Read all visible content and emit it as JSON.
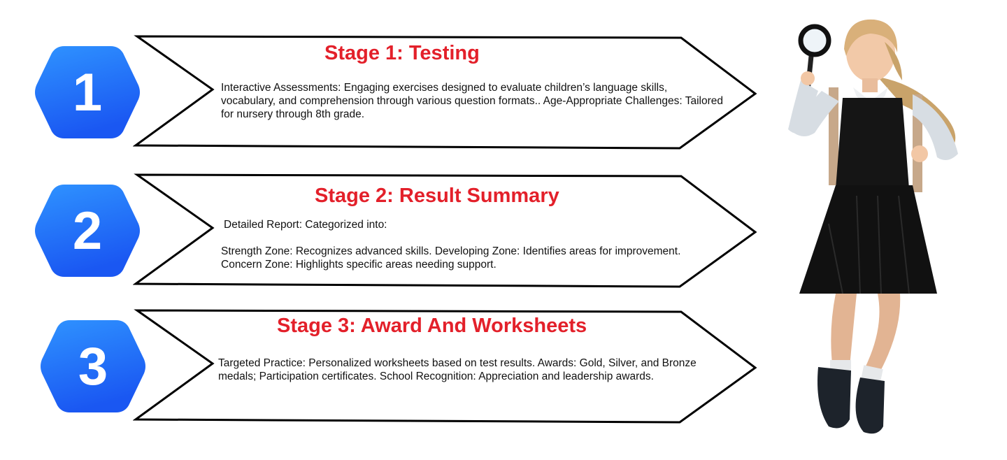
{
  "stages": [
    {
      "number": "1",
      "title": "Stage 1: Testing",
      "body": "Interactive Assessments: Engaging exercises designed to evaluate children’s language skills, vocabulary, and comprehension through various question formats.. Age-Appropriate Challenges: Tailored for nursery through 8th grade."
    },
    {
      "number": "2",
      "title": "Stage 2: Result Summary",
      "intro": "Detailed Report: Categorized into:",
      "body": "Strength Zone: Recognizes advanced skills. Developing Zone: Identifies areas for improvement. Concern Zone: Highlights specific areas needing support."
    },
    {
      "number": "3",
      "title": "Stage 3: Award And Worksheets",
      "body": "Targeted Practice: Personalized worksheets based on test results. Awards: Gold, Silver, and Bronze medals; Participation certificates. School Recognition: Appreciation and leadership awards."
    }
  ],
  "colors": {
    "hexagon_top": "#2a8cff",
    "hexagon_bottom": "#1a5cf5",
    "title": "#e3202a",
    "arrow_stroke": "#000000"
  },
  "illustration": {
    "icon": "girl-with-magnifying-glass-icon"
  }
}
